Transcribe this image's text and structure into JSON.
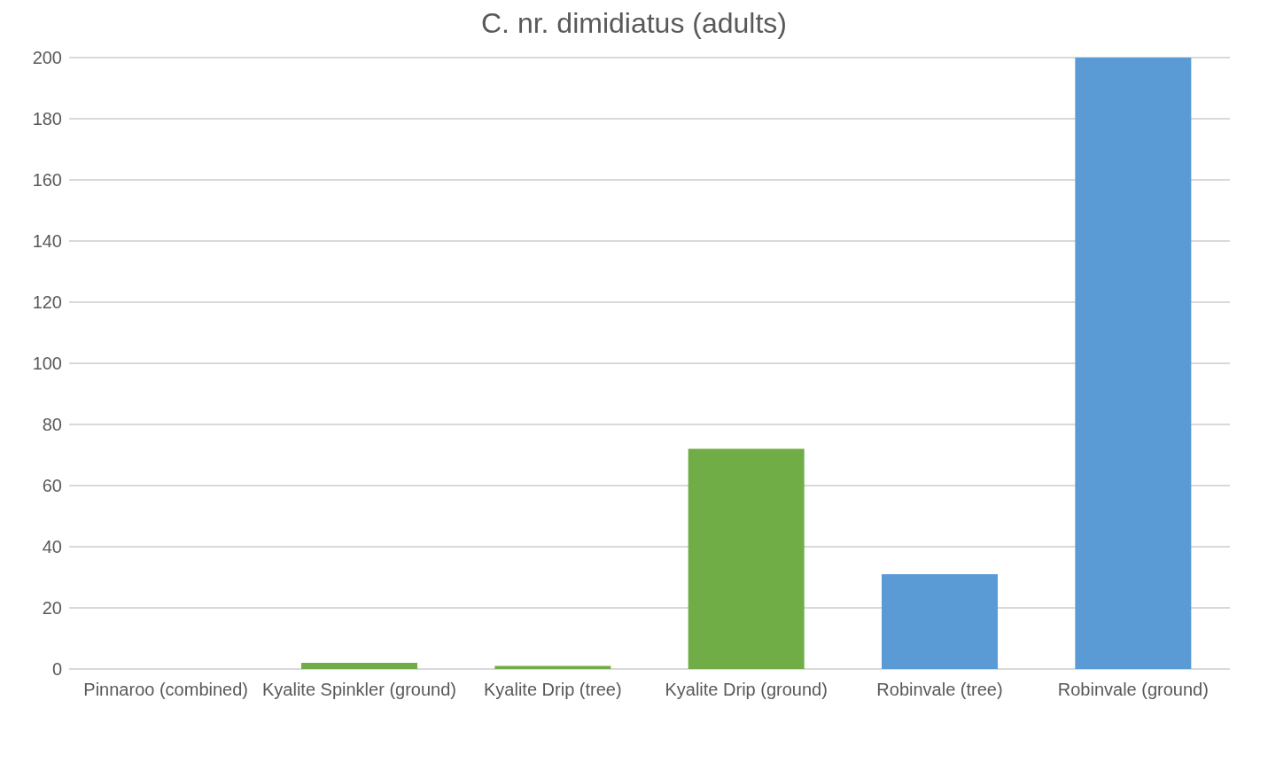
{
  "chart_data": {
    "type": "bar",
    "title": "C. nr. dimidiatus (adults)",
    "categories": [
      "Pinnaroo (combined)",
      "Kyalite Spinkler (ground)",
      "Kyalite Drip (tree)",
      "Kyalite Drip (ground)",
      "Robinvale (tree)",
      "Robinvale (ground)"
    ],
    "values": [
      0,
      2,
      1,
      72,
      31,
      200
    ],
    "colors": [
      "#9e480e",
      "#70ad47",
      "#70ad47",
      "#70ad47",
      "#5b9bd5",
      "#5b9bd5"
    ],
    "ylim": [
      0,
      200
    ],
    "yticks": [
      0,
      20,
      40,
      60,
      80,
      100,
      120,
      140,
      160,
      180,
      200
    ],
    "grid": "y",
    "legend": false
  }
}
